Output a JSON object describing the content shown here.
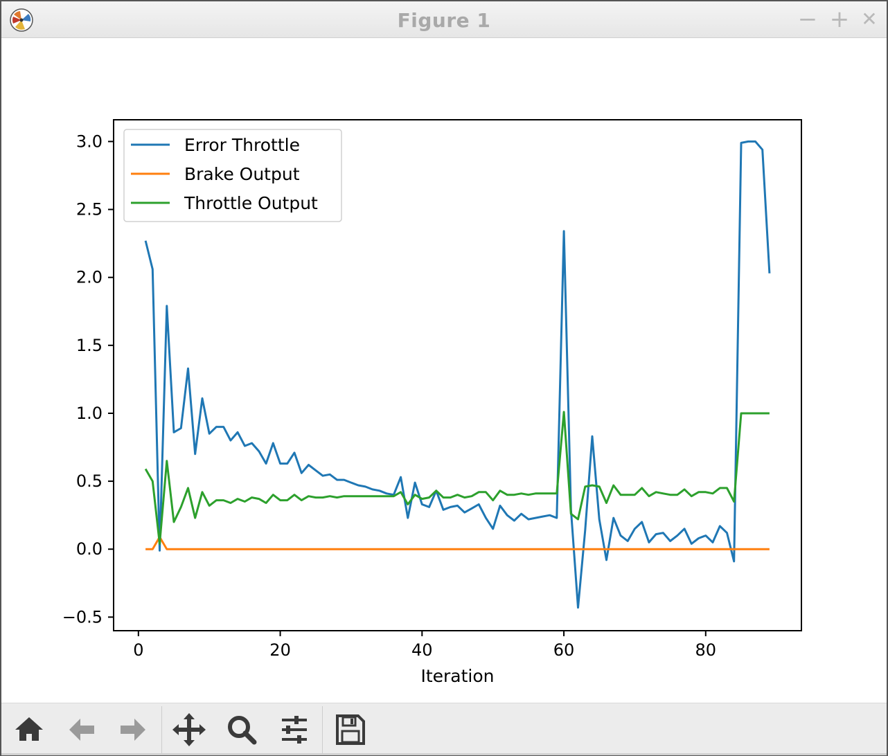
{
  "window": {
    "title": "Figure 1",
    "minimize_label": "−",
    "maximize_label": "+",
    "close_label": "✕",
    "app_icon": "matplotlib-icon"
  },
  "toolbar": {
    "buttons": [
      {
        "name": "home",
        "icon": "home-icon"
      },
      {
        "name": "back",
        "icon": "arrow-left-icon"
      },
      {
        "name": "forward",
        "icon": "arrow-right-icon"
      },
      {
        "name": "pan",
        "icon": "move-arrows-icon"
      },
      {
        "name": "zoom",
        "icon": "magnifier-icon"
      },
      {
        "name": "configure-subplots",
        "icon": "sliders-icon"
      },
      {
        "name": "save",
        "icon": "floppy-disk-icon"
      }
    ]
  },
  "chart_data": {
    "type": "line",
    "title": "",
    "xlabel": "Iteration",
    "ylabel": "",
    "xlim": [
      -3.5,
      93.5
    ],
    "ylim": [
      -0.6,
      3.16
    ],
    "xticks": [
      0,
      20,
      40,
      60,
      80
    ],
    "xtick_labels": [
      "0",
      "20",
      "40",
      "60",
      "80"
    ],
    "yticks": [
      -0.5,
      0.0,
      0.5,
      1.0,
      1.5,
      2.0,
      2.5,
      3.0
    ],
    "ytick_labels": [
      "−0.5",
      "0.0",
      "0.5",
      "1.0",
      "1.5",
      "2.0",
      "2.5",
      "3.0"
    ],
    "grid": false,
    "legend": "upper-left",
    "x": [
      1,
      2,
      3,
      4,
      5,
      6,
      7,
      8,
      9,
      10,
      11,
      12,
      13,
      14,
      15,
      16,
      17,
      18,
      19,
      20,
      21,
      22,
      23,
      24,
      25,
      26,
      27,
      28,
      29,
      30,
      31,
      32,
      33,
      34,
      35,
      36,
      37,
      38,
      39,
      40,
      41,
      42,
      43,
      44,
      45,
      46,
      47,
      48,
      49,
      50,
      51,
      52,
      53,
      54,
      55,
      56,
      57,
      58,
      59,
      60,
      61,
      62,
      63,
      64,
      65,
      66,
      67,
      68,
      69,
      70,
      71,
      72,
      73,
      74,
      75,
      76,
      77,
      78,
      79,
      80,
      81,
      82,
      83,
      84,
      85,
      86,
      87,
      88,
      89
    ],
    "series": [
      {
        "name": "Error Throttle",
        "color": "#1f77b4",
        "values": [
          2.27,
          2.06,
          -0.01,
          1.79,
          0.86,
          0.89,
          1.33,
          0.7,
          1.11,
          0.85,
          0.9,
          0.9,
          0.8,
          0.86,
          0.76,
          0.78,
          0.72,
          0.63,
          0.78,
          0.63,
          0.63,
          0.71,
          0.56,
          0.62,
          0.58,
          0.54,
          0.55,
          0.51,
          0.51,
          0.49,
          0.47,
          0.46,
          0.44,
          0.43,
          0.41,
          0.4,
          0.53,
          0.23,
          0.49,
          0.33,
          0.31,
          0.43,
          0.29,
          0.31,
          0.32,
          0.27,
          0.3,
          0.33,
          0.23,
          0.15,
          0.32,
          0.25,
          0.21,
          0.26,
          0.22,
          0.23,
          0.24,
          0.25,
          0.23,
          2.34,
          0.29,
          -0.43,
          0.14,
          0.83,
          0.22,
          -0.08,
          0.23,
          0.1,
          0.06,
          0.15,
          0.2,
          0.05,
          0.11,
          0.12,
          0.06,
          0.1,
          0.15,
          0.04,
          0.08,
          0.1,
          0.05,
          0.17,
          0.12,
          -0.09,
          2.99,
          3.0,
          3.0,
          2.94,
          2.03
        ]
      },
      {
        "name": "Brake Output",
        "color": "#ff7f0e",
        "values": [
          0,
          0,
          0.09,
          0,
          0,
          0,
          0,
          0,
          0,
          0,
          0,
          0,
          0,
          0,
          0,
          0,
          0,
          0,
          0,
          0,
          0,
          0,
          0,
          0,
          0,
          0,
          0,
          0,
          0,
          0,
          0,
          0,
          0,
          0,
          0,
          0,
          0,
          0,
          0,
          0,
          0,
          0,
          0,
          0,
          0,
          0,
          0,
          0,
          0,
          0,
          0,
          0,
          0,
          0,
          0,
          0,
          0,
          0,
          0,
          0,
          0,
          0,
          0,
          0,
          0,
          0,
          0,
          0,
          0,
          0,
          0,
          0,
          0,
          0,
          0,
          0,
          0,
          0,
          0,
          0,
          0,
          0,
          0,
          0,
          0,
          0,
          0,
          0,
          0
        ]
      },
      {
        "name": "Throttle Output",
        "color": "#2ca02c",
        "values": [
          0.59,
          0.5,
          0.04,
          0.65,
          0.2,
          0.31,
          0.45,
          0.23,
          0.42,
          0.32,
          0.36,
          0.36,
          0.34,
          0.37,
          0.35,
          0.38,
          0.37,
          0.34,
          0.4,
          0.36,
          0.36,
          0.4,
          0.36,
          0.39,
          0.38,
          0.38,
          0.39,
          0.38,
          0.39,
          0.39,
          0.39,
          0.39,
          0.39,
          0.39,
          0.39,
          0.39,
          0.42,
          0.33,
          0.4,
          0.37,
          0.38,
          0.43,
          0.38,
          0.38,
          0.4,
          0.38,
          0.39,
          0.42,
          0.42,
          0.36,
          0.43,
          0.4,
          0.4,
          0.41,
          0.4,
          0.41,
          0.41,
          0.41,
          0.41,
          1.01,
          0.26,
          0.22,
          0.46,
          0.47,
          0.46,
          0.34,
          0.47,
          0.4,
          0.4,
          0.4,
          0.45,
          0.39,
          0.42,
          0.41,
          0.4,
          0.4,
          0.44,
          0.39,
          0.42,
          0.42,
          0.41,
          0.45,
          0.45,
          0.35,
          1.0,
          1.0,
          1.0,
          1.0,
          1.0
        ]
      }
    ]
  }
}
